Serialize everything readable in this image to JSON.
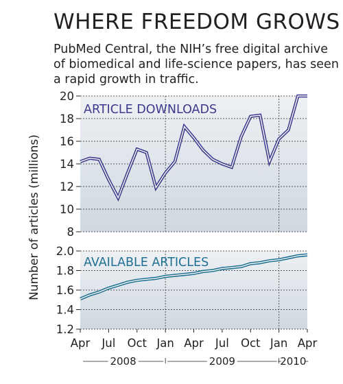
{
  "title": "WHERE FREEDOM GROWS",
  "subtitle": "PubMed Central, the NIH’s free digital archive of biomedical and life-science papers, has seen a rapid growth in traffic.",
  "colors": {
    "downloads_line": "#3b3a8c",
    "articles_line": "#1f6f92",
    "panel_top": "#eef1f4",
    "panel_bottom": "#cfd8e0",
    "gridline": "#555555"
  },
  "chart_data": {
    "type": "line",
    "ylabel": "Number of articles (millions)",
    "x_tick_labels": [
      "Apr",
      "Jul",
      "Oct",
      "Jan",
      "Apr",
      "Jul",
      "Oct",
      "Jan",
      "Apr"
    ],
    "x_year_labels": [
      "2008",
      "2009",
      "2010"
    ],
    "x_range": [
      "2008-04",
      "2010-04"
    ],
    "panels": [
      {
        "name": "ARTICLE DOWNLOADS",
        "ylim": [
          8,
          20
        ],
        "yticks": [
          "8",
          "10",
          "12",
          "14",
          "16",
          "18",
          "20"
        ],
        "grid": true,
        "x": [
          "2008-04",
          "2008-05",
          "2008-06",
          "2008-07",
          "2008-08",
          "2008-09",
          "2008-10",
          "2008-11",
          "2008-12",
          "2009-01",
          "2009-02",
          "2009-03",
          "2009-04",
          "2009-05",
          "2009-06",
          "2009-07",
          "2009-08",
          "2009-09",
          "2009-10",
          "2009-11",
          "2009-12",
          "2010-01",
          "2010-02",
          "2010-03",
          "2010-04"
        ],
        "values": [
          14.2,
          14.5,
          14.4,
          12.6,
          11.0,
          13.2,
          15.3,
          15.0,
          11.9,
          13.2,
          14.2,
          17.3,
          16.3,
          15.2,
          14.4,
          14.0,
          13.7,
          16.4,
          18.2,
          18.3,
          14.2,
          16.2,
          17.0,
          20.0,
          20.0
        ]
      },
      {
        "name": "AVAILABLE ARTICLES",
        "ylim": [
          1.2,
          2.0
        ],
        "yticks": [
          "1.2",
          "1.4",
          "1.6",
          "1.8",
          "2.0"
        ],
        "grid": true,
        "x": [
          "2008-04",
          "2008-05",
          "2008-06",
          "2008-07",
          "2008-08",
          "2008-09",
          "2008-10",
          "2008-11",
          "2008-12",
          "2009-01",
          "2009-02",
          "2009-03",
          "2009-04",
          "2009-05",
          "2009-06",
          "2009-07",
          "2009-08",
          "2009-09",
          "2009-10",
          "2009-11",
          "2009-12",
          "2010-01",
          "2010-02",
          "2010-03",
          "2010-04"
        ],
        "values": [
          1.51,
          1.55,
          1.58,
          1.62,
          1.65,
          1.68,
          1.7,
          1.71,
          1.72,
          1.74,
          1.75,
          1.76,
          1.77,
          1.79,
          1.8,
          1.82,
          1.83,
          1.84,
          1.87,
          1.88,
          1.9,
          1.91,
          1.93,
          1.95,
          1.96
        ]
      }
    ]
  }
}
